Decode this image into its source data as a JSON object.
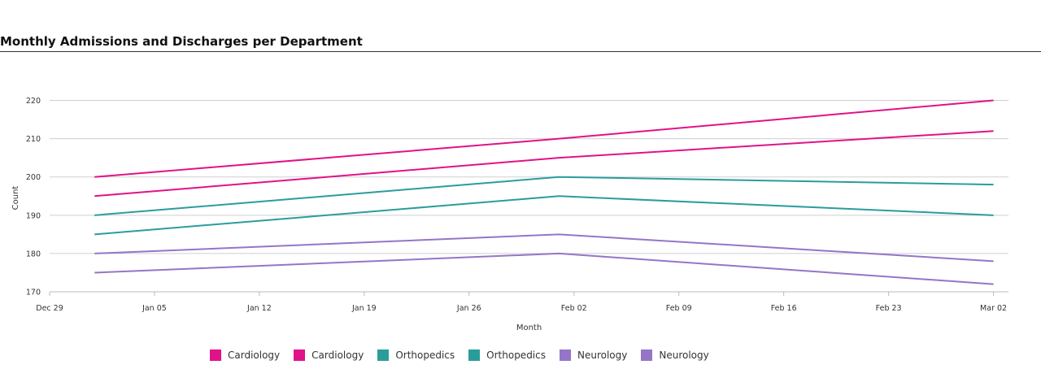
{
  "chart_data": {
    "type": "line",
    "title": "Monthly Admissions and Discharges per Department",
    "xlabel": "Month",
    "ylabel": "Count",
    "x": [
      "2024-01-01",
      "2024-02-01",
      "2024-03-01"
    ],
    "xlim": [
      "2023-12-29",
      "2024-03-02"
    ],
    "xticks": [
      "Dec 29",
      "Jan 05",
      "Jan 12",
      "Jan 19",
      "Jan 26",
      "Feb 02",
      "Feb 09",
      "Feb 16",
      "Feb 23",
      "Mar 02"
    ],
    "ylim": [
      170,
      225
    ],
    "yticks": [
      170,
      180,
      190,
      200,
      210,
      220
    ],
    "grid": true,
    "legend_position": "bottom",
    "series": [
      {
        "name": "Cardiology",
        "color": "#e0128a",
        "values": [
          200,
          210,
          220
        ]
      },
      {
        "name": "Cardiology",
        "color": "#e0128a",
        "values": [
          195,
          205,
          212
        ]
      },
      {
        "name": "Orthopedics",
        "color": "#2a9d9b",
        "values": [
          190,
          200,
          198
        ]
      },
      {
        "name": "Orthopedics",
        "color": "#2a9d9b",
        "values": [
          185,
          195,
          190
        ]
      },
      {
        "name": "Neurology",
        "color": "#9575c7",
        "values": [
          180,
          185,
          178
        ]
      },
      {
        "name": "Neurology",
        "color": "#9575c7",
        "values": [
          175,
          180,
          172
        ]
      }
    ]
  }
}
